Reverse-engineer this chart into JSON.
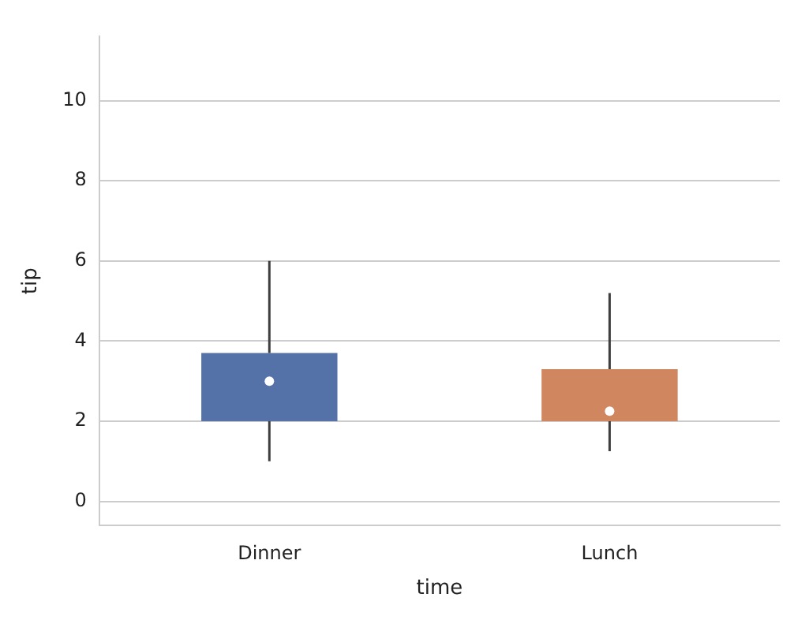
{
  "chart_data": {
    "type": "box",
    "xlabel": "time",
    "ylabel": "tip",
    "categories": [
      "Dinner",
      "Lunch"
    ],
    "colors": [
      "#5572a8",
      "#d0875f"
    ],
    "boxes": [
      {
        "low": 1.0,
        "q1": 2.0,
        "median": 3.0,
        "q3": 3.7,
        "high": 6.0
      },
      {
        "low": 1.25,
        "q1": 2.0,
        "median": 2.25,
        "q3": 3.3,
        "high": 5.2
      }
    ],
    "ylim": [
      -0.6,
      11.6
    ],
    "yticks": [
      0,
      2,
      4,
      6,
      8,
      10
    ],
    "grid": "y",
    "legend": false
  }
}
